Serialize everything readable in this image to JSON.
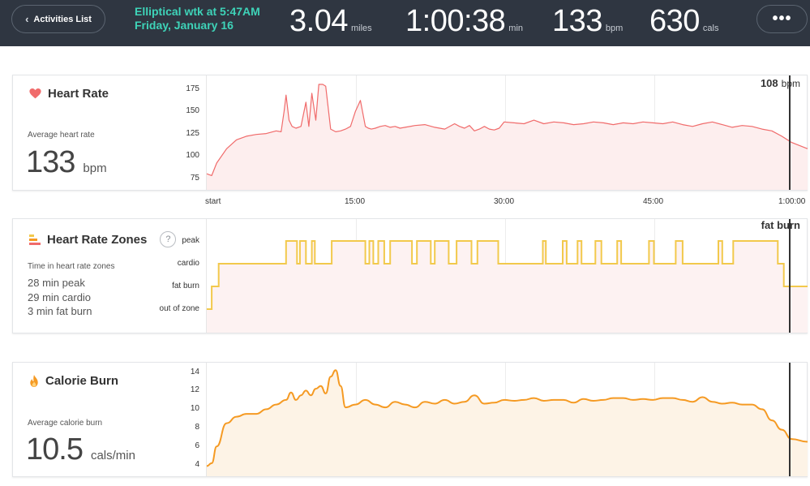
{
  "header": {
    "back_label": "Activities List",
    "activity_title": "Elliptical wtk at 5:47AM",
    "activity_date": "Friday, January 16",
    "stats": [
      {
        "value": "3.04",
        "unit": "miles"
      },
      {
        "value": "1:00:38",
        "unit": "min"
      },
      {
        "value": "133",
        "unit": "bpm"
      },
      {
        "value": "630",
        "unit": "cals"
      }
    ],
    "more_label": "•••"
  },
  "colors": {
    "header_bg": "#2f3641",
    "accent_teal": "#3ed3b8",
    "heart": "#f06b6b",
    "zones": "#f2c94c",
    "calorie": "#f59a23"
  },
  "heart_rate": {
    "title": "Heart Rate",
    "icon": "heart-icon",
    "avg_label": "Average heart rate",
    "avg_value": "133",
    "avg_unit": "bpm",
    "readout_value": "108",
    "readout_unit": "bpm"
  },
  "zones": {
    "title": "Heart Rate Zones",
    "icon": "zones-icon",
    "help": "?",
    "label": "Time in heart rate zones",
    "items": [
      "28 min peak",
      "29 min cardio",
      "3 min fat burn"
    ],
    "readout": "fat burn"
  },
  "calorie": {
    "title": "Calorie Burn",
    "icon": "flame-icon",
    "avg_label": "Average calorie burn",
    "avg_value": "10.5",
    "avg_unit": "cals/min"
  },
  "x_axis": [
    "start",
    "15:00",
    "30:00",
    "45:00",
    "1:00:00"
  ],
  "chart_data": [
    {
      "type": "area",
      "title": "Heart Rate",
      "x_unit": "min",
      "yticks": [
        75,
        100,
        125,
        150,
        175
      ],
      "ylim": [
        62,
        190
      ],
      "x": [
        0,
        0.5,
        1,
        2,
        3,
        4,
        5,
        6,
        7,
        7.5,
        7.8,
        8,
        8.3,
        8.6,
        9,
        9.5,
        10,
        10.3,
        10.6,
        11,
        11.3,
        11.7,
        12,
        12.5,
        13,
        13.5,
        14,
        14.5,
        15,
        15.5,
        16,
        16.3,
        16.6,
        17,
        17.5,
        18,
        18.5,
        19,
        19.5,
        20,
        21,
        22,
        23,
        24,
        25,
        25.5,
        26,
        26.5,
        27,
        27.5,
        28,
        28.5,
        29,
        29.5,
        30,
        31,
        32,
        33,
        34,
        35,
        36,
        37,
        38,
        39,
        40,
        41,
        42,
        43,
        44,
        45,
        46,
        47,
        48,
        49,
        50,
        51,
        52,
        53,
        54,
        55,
        56,
        57,
        58,
        59,
        60.6
      ],
      "series": [
        {
          "name": "",
          "values": [
            80,
            78,
            92,
            108,
            118,
            122,
            124,
            125,
            128,
            127,
            150,
            168,
            140,
            133,
            131,
            133,
            160,
            133,
            170,
            140,
            180,
            180,
            178,
            130,
            127,
            128,
            130,
            133,
            150,
            162,
            133,
            131,
            130,
            131,
            133,
            134,
            132,
            133,
            131,
            132,
            134,
            135,
            132,
            130,
            136,
            133,
            131,
            134,
            128,
            130,
            133,
            130,
            129,
            131,
            138,
            137,
            136,
            140,
            136,
            138,
            137,
            135,
            136,
            138,
            137,
            135,
            137,
            136,
            138,
            137,
            136,
            138,
            135,
            133,
            136,
            138,
            135,
            132,
            134,
            133,
            130,
            128,
            122,
            115,
            108
          ]
        }
      ]
    },
    {
      "type": "line",
      "title": "Heart Rate Zones",
      "x_unit": "min",
      "categories": [
        "out of zone",
        "fat burn",
        "cardio",
        "peak"
      ],
      "note": "step series; level 0=out of zone, 1=fat burn, 2=cardio, 3=peak",
      "x": [
        0,
        0.5,
        1.2,
        8,
        9.1,
        9.4,
        10,
        10.6,
        10.9,
        12.6,
        16,
        16.4,
        16.8,
        17.3,
        17.9,
        18.5,
        20.7,
        21.2,
        22.6,
        23,
        24.4,
        25.2,
        26.7,
        27.3,
        29.4,
        33.9,
        34.2,
        35.9,
        36.3,
        37.4,
        37.8,
        39.2,
        39.8,
        41.4,
        41.8,
        44.6,
        45.1,
        47.3,
        48,
        51.6,
        52,
        53.1,
        57.6,
        58.2,
        60.6
      ],
      "series": [
        {
          "name": "",
          "values": [
            0,
            1,
            2,
            3,
            2,
            3,
            2,
            3,
            2,
            3,
            2,
            3,
            2,
            3,
            2,
            3,
            2,
            3,
            2,
            3,
            2,
            3,
            2,
            3,
            2,
            3,
            2,
            3,
            2,
            3,
            2,
            3,
            2,
            3,
            2,
            3,
            2,
            3,
            2,
            3,
            2,
            3,
            2,
            1,
            1
          ]
        }
      ]
    },
    {
      "type": "area",
      "title": "Calorie Burn",
      "x_unit": "min",
      "yticks": [
        4,
        6,
        8,
        10,
        12,
        14
      ],
      "ylim": [
        2.8,
        15
      ],
      "x": [
        0,
        0.5,
        1,
        2,
        3,
        4,
        5,
        6,
        7,
        8,
        8.5,
        9,
        9.5,
        10,
        10.5,
        11,
        11.5,
        12,
        12.5,
        13,
        13.5,
        14,
        15,
        16,
        17,
        18,
        19,
        20,
        21,
        22,
        23,
        24,
        25,
        26,
        27,
        28,
        29,
        30,
        31,
        32,
        33,
        34,
        35,
        36,
        37,
        38,
        39,
        40,
        41,
        42,
        43,
        44,
        45,
        46,
        47,
        48,
        49,
        50,
        51,
        52,
        53,
        54,
        55,
        56,
        57,
        58,
        59,
        60.6
      ],
      "series": [
        {
          "name": "",
          "values": [
            3.9,
            4.2,
            6.0,
            8.5,
            9.2,
            9.5,
            9.5,
            10.0,
            10.5,
            11.0,
            11.8,
            11.0,
            11.5,
            12.0,
            11.5,
            12.2,
            12.5,
            11.7,
            13.5,
            14.2,
            12.5,
            10.2,
            10.5,
            11.0,
            10.5,
            10.2,
            10.8,
            10.5,
            10.2,
            10.8,
            10.6,
            11.0,
            10.6,
            10.8,
            11.5,
            10.6,
            10.7,
            11.0,
            10.9,
            11.0,
            11.2,
            10.9,
            11.0,
            11.0,
            10.7,
            11.1,
            10.9,
            11.0,
            11.2,
            11.2,
            11.0,
            11.1,
            11.0,
            11.2,
            11.2,
            11.0,
            10.8,
            11.3,
            10.8,
            10.6,
            10.7,
            10.5,
            10.5,
            10.0,
            8.8,
            7.8,
            6.8,
            6.5
          ]
        }
      ]
    }
  ]
}
